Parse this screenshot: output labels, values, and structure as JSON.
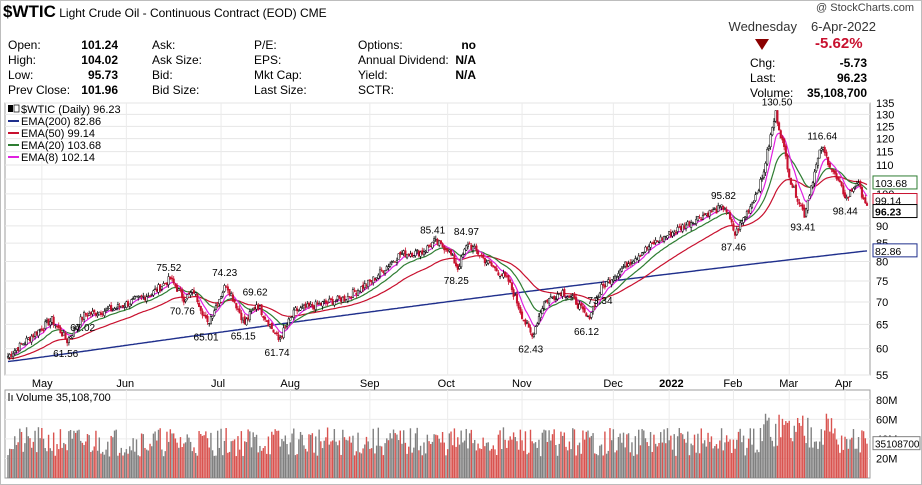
{
  "header": {
    "symbol": "$WTIC",
    "name": "Light Crude Oil - Continuous Contract (EOD)",
    "exchange": "CME",
    "copyright": "@ StockCharts.com",
    "weekday": "Wednesday",
    "date": "6-Apr-2022",
    "pct_change": "-5.62%",
    "quote": [
      [
        {
          "label": "Open:",
          "value": "101.24"
        },
        {
          "label": "Ask:",
          "value": ""
        },
        {
          "label": "P/E:",
          "value": ""
        },
        {
          "label": "Options:",
          "value": "no"
        }
      ],
      [
        {
          "label": "High:",
          "value": "104.02"
        },
        {
          "label": "Ask Size:",
          "value": ""
        },
        {
          "label": "EPS:",
          "value": ""
        },
        {
          "label": "Annual Dividend:",
          "value": "N/A"
        }
      ],
      [
        {
          "label": "Low:",
          "value": "95.73"
        },
        {
          "label": "Bid:",
          "value": ""
        },
        {
          "label": "Mkt Cap:",
          "value": ""
        },
        {
          "label": "Yield:",
          "value": "N/A"
        }
      ],
      [
        {
          "label": "Prev Close:",
          "value": "101.96"
        },
        {
          "label": "Bid Size:",
          "value": ""
        },
        {
          "label": "Last Size:",
          "value": ""
        },
        {
          "label": "SCTR:",
          "value": ""
        }
      ]
    ],
    "right_quote": [
      {
        "label": "Chg:",
        "value": "-5.73"
      },
      {
        "label": "Last:",
        "value": "96.23"
      },
      {
        "label": "Volume:",
        "value": "35,108,700"
      }
    ]
  },
  "colors": {
    "up": "#000000",
    "down": "#c8102e",
    "ema200": "#1f2f8c",
    "ema50": "#c8102e",
    "ema20": "#2e7d32",
    "ema8": "#e020e0",
    "vol_up": "#808080",
    "vol_down": "#d9534f"
  },
  "chart_data": [
    {
      "type": "line",
      "title": "$WTIC (Daily) 96.23",
      "ylim": [
        55,
        135
      ],
      "yscale": "log",
      "y_ticks": [
        55,
        60,
        65,
        70,
        75,
        80,
        85,
        90,
        95,
        100,
        105,
        110,
        115,
        120,
        125,
        130,
        135
      ],
      "x_months": [
        "May",
        "Jun",
        "Jul",
        "Aug",
        "Sep",
        "Oct",
        "Nov",
        "Dec",
        "2022",
        "Feb",
        "Mar",
        "Apr"
      ],
      "legend": [
        {
          "key": "price",
          "label": "$WTIC (Daily) 96.23"
        },
        {
          "key": "ema200",
          "label": "EMA(200) 82.86"
        },
        {
          "key": "ema50",
          "label": "EMA(50) 99.14"
        },
        {
          "key": "ema20",
          "label": "EMA(20) 103.68"
        },
        {
          "key": "ema8",
          "label": "EMA(8) 102.14"
        }
      ],
      "legend_position": "top-left",
      "price_key_points": [
        {
          "day": 0,
          "v": 58.5
        },
        {
          "day": 26,
          "v": 66.0
        },
        {
          "day": 35,
          "v": 61.56
        },
        {
          "day": 45,
          "v": 67.02
        },
        {
          "day": 63,
          "v": 68.5
        },
        {
          "day": 85,
          "v": 72.0
        },
        {
          "day": 96,
          "v": 75.52
        },
        {
          "day": 104,
          "v": 70.76
        },
        {
          "day": 110,
          "v": 72.5
        },
        {
          "day": 118,
          "v": 65.01
        },
        {
          "day": 129,
          "v": 74.23
        },
        {
          "day": 140,
          "v": 65.15
        },
        {
          "day": 147,
          "v": 69.62
        },
        {
          "day": 160,
          "v": 61.74
        },
        {
          "day": 170,
          "v": 68.0
        },
        {
          "day": 200,
          "v": 71.0
        },
        {
          "day": 215,
          "v": 75.0
        },
        {
          "day": 232,
          "v": 82.0
        },
        {
          "day": 245,
          "v": 82.5
        },
        {
          "day": 252,
          "v": 85.41
        },
        {
          "day": 260,
          "v": 83.5
        },
        {
          "day": 266,
          "v": 78.25
        },
        {
          "day": 272,
          "v": 84.97
        },
        {
          "day": 283,
          "v": 80.0
        },
        {
          "day": 296,
          "v": 75.0
        },
        {
          "day": 305,
          "v": 66.0
        },
        {
          "day": 310,
          "v": 62.43
        },
        {
          "day": 317,
          "v": 70.0
        },
        {
          "day": 328,
          "v": 72.5
        },
        {
          "day": 336,
          "v": 70.0
        },
        {
          "day": 343,
          "v": 66.12
        },
        {
          "day": 351,
          "v": 73.34
        },
        {
          "day": 365,
          "v": 79.0
        },
        {
          "day": 382,
          "v": 85.0
        },
        {
          "day": 398,
          "v": 89.5
        },
        {
          "day": 412,
          "v": 93.5
        },
        {
          "day": 424,
          "v": 95.82
        },
        {
          "day": 430,
          "v": 87.46
        },
        {
          "day": 440,
          "v": 97.0
        },
        {
          "day": 446,
          "v": 105.0
        },
        {
          "day": 454,
          "v": 130.5
        },
        {
          "day": 463,
          "v": 104.0
        },
        {
          "day": 471,
          "v": 93.41
        },
        {
          "day": 481,
          "v": 116.64
        },
        {
          "day": 490,
          "v": 105.0
        },
        {
          "day": 496,
          "v": 98.44
        },
        {
          "day": 502,
          "v": 104.0
        },
        {
          "day": 508,
          "v": 96.23
        }
      ],
      "last_values": {
        "price": 96.23,
        "ema20": 103.68,
        "ema50": 99.14,
        "ema200": 82.86
      },
      "annotations": [
        {
          "text": "61.56",
          "v": 61.56
        },
        {
          "text": "67.02",
          "v": 67.02
        },
        {
          "text": "75.52",
          "v": 75.52
        },
        {
          "text": "70.76",
          "v": 70.76
        },
        {
          "text": "65.01",
          "v": 65.01
        },
        {
          "text": "74.23",
          "v": 74.23
        },
        {
          "text": "65.15",
          "v": 65.15
        },
        {
          "text": "69.62",
          "v": 69.62
        },
        {
          "text": "61.74",
          "v": 61.74
        },
        {
          "text": "85.41",
          "v": 85.41
        },
        {
          "text": "84.97",
          "v": 84.97
        },
        {
          "text": "78.25",
          "v": 78.25
        },
        {
          "text": "62.43",
          "v": 62.43
        },
        {
          "text": "73.34",
          "v": 73.34
        },
        {
          "text": "66.12",
          "v": 66.12
        },
        {
          "text": "95.82",
          "v": 95.82
        },
        {
          "text": "87.46",
          "v": 87.46
        },
        {
          "text": "130.50",
          "v": 130.5
        },
        {
          "text": "116.64",
          "v": 116.64
        },
        {
          "text": "93.41",
          "v": 93.41
        },
        {
          "text": "98.44",
          "v": 98.44
        }
      ]
    },
    {
      "type": "bar",
      "title": "Volume 35,108,700",
      "ylim": [
        0,
        90000000
      ],
      "y_ticks": [
        {
          "v": 20000000,
          "label": "20M"
        },
        {
          "v": 40000000,
          "label": "40M"
        },
        {
          "v": 60000000,
          "label": "60M"
        },
        {
          "v": 80000000,
          "label": "80M"
        }
      ],
      "last_value": 35108700,
      "last_label": "35108700"
    }
  ]
}
